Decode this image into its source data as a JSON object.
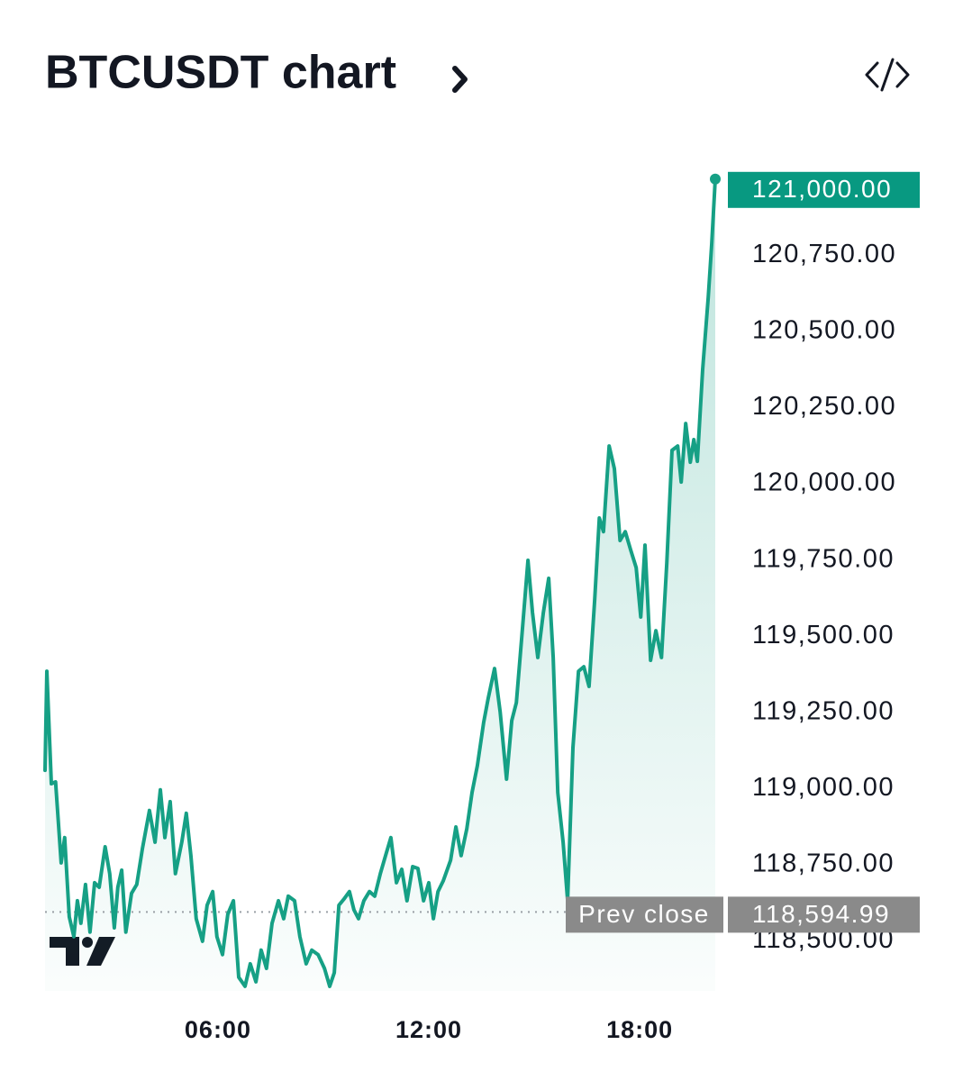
{
  "chart_data": {
    "type": "area",
    "title": "BTCUSDT chart",
    "color": "#16a085",
    "x": [
      1.08,
      1.13,
      1.26,
      1.38,
      1.54,
      1.64,
      1.77,
      1.9,
      2.0,
      2.1,
      2.23,
      2.36,
      2.49,
      2.62,
      2.79,
      2.92,
      3.05,
      3.15,
      3.26,
      3.38,
      3.54,
      3.69,
      3.85,
      4.05,
      4.21,
      4.36,
      4.49,
      4.64,
      4.79,
      4.97,
      5.1,
      5.23,
      5.38,
      5.56,
      5.69,
      5.85,
      5.97,
      6.13,
      6.28,
      6.44,
      6.59,
      6.77,
      6.92,
      7.08,
      7.23,
      7.38,
      7.54,
      7.72,
      7.87,
      8.0,
      8.18,
      8.33,
      8.51,
      8.67,
      8.85,
      9.03,
      9.18,
      9.31,
      9.44,
      9.59,
      9.74,
      9.87,
      10.0,
      10.15,
      10.31,
      10.46,
      10.62,
      10.77,
      10.92,
      11.08,
      11.23,
      11.38,
      11.54,
      11.69,
      11.85,
      12.0,
      12.13,
      12.26,
      12.41,
      12.62,
      12.77,
      12.92,
      13.08,
      13.23,
      13.38,
      13.56,
      13.69,
      13.87,
      14.03,
      14.21,
      14.36,
      14.49,
      14.67,
      14.82,
      14.95,
      15.1,
      15.26,
      15.41,
      15.54,
      15.67,
      15.82,
      15.95,
      16.1,
      16.26,
      16.41,
      16.56,
      16.72,
      16.85,
      16.97,
      17.13,
      17.28,
      17.44,
      17.59,
      17.74,
      17.9,
      18.03,
      18.15,
      18.31,
      18.46,
      18.62,
      18.77,
      18.92,
      19.08,
      19.18,
      19.31,
      19.44,
      19.54,
      19.64,
      19.79,
      19.95,
      20.05,
      20.15
    ],
    "values": [
      119060,
      119385,
      119016,
      119022,
      118756,
      118839,
      118579,
      118514,
      118632,
      118558,
      118685,
      118529,
      118691,
      118676,
      118809,
      118721,
      118543,
      118676,
      118732,
      118529,
      118656,
      118685,
      118803,
      118928,
      118824,
      118996,
      118839,
      118957,
      118721,
      118824,
      118919,
      118780,
      118573,
      118499,
      118617,
      118662,
      118514,
      118455,
      118588,
      118632,
      118381,
      118351,
      118425,
      118366,
      118470,
      118410,
      118558,
      118632,
      118573,
      118647,
      118632,
      118514,
      118425,
      118470,
      118455,
      118410,
      118351,
      118396,
      118617,
      118638,
      118662,
      118602,
      118573,
      118632,
      118662,
      118647,
      118721,
      118780,
      118839,
      118691,
      118735,
      118632,
      118744,
      118738,
      118632,
      118691,
      118573,
      118662,
      118697,
      118765,
      118874,
      118780,
      118868,
      118987,
      119075,
      119217,
      119297,
      119394,
      119252,
      119031,
      119223,
      119282,
      119533,
      119749,
      119578,
      119430,
      119578,
      119690,
      119430,
      118987,
      118824,
      118632,
      119134,
      119385,
      119400,
      119335,
      119622,
      119888,
      119843,
      120124,
      120050,
      119814,
      119843,
      119784,
      119725,
      119563,
      119799,
      119421,
      119518,
      119430,
      119740,
      120110,
      120124,
      120006,
      120198,
      120071,
      120145,
      120074,
      120375,
      120612,
      120789,
      121000
    ],
    "xlim": [
      1.08,
      20.15
    ],
    "xticks": [
      {
        "value": 6,
        "label": "06:00"
      },
      {
        "value": 12,
        "label": "12:00"
      },
      {
        "value": 18,
        "label": "18:00"
      }
    ],
    "ylim": [
      118336,
      121026
    ],
    "yticks": [
      {
        "value": 118500,
        "label": "118,500.00"
      },
      {
        "value": 118750,
        "label": "118,750.00"
      },
      {
        "value": 119000,
        "label": "119,000.00"
      },
      {
        "value": 119250,
        "label": "119,250.00"
      },
      {
        "value": 119500,
        "label": "119,500.00"
      },
      {
        "value": 119750,
        "label": "119,750.00"
      },
      {
        "value": 120000,
        "label": "120,000.00"
      },
      {
        "value": 120250,
        "label": "120,250.00"
      },
      {
        "value": 120500,
        "label": "120,500.00"
      },
      {
        "value": 120750,
        "label": "120,750.00"
      }
    ],
    "last_price": {
      "value": 121000,
      "label": "121,000.00",
      "color": "#089981"
    },
    "prev_close": {
      "name": "Prev close",
      "value": 118594.99,
      "label": "118,594.99",
      "color": "#8a8a8a"
    },
    "grid": false
  }
}
